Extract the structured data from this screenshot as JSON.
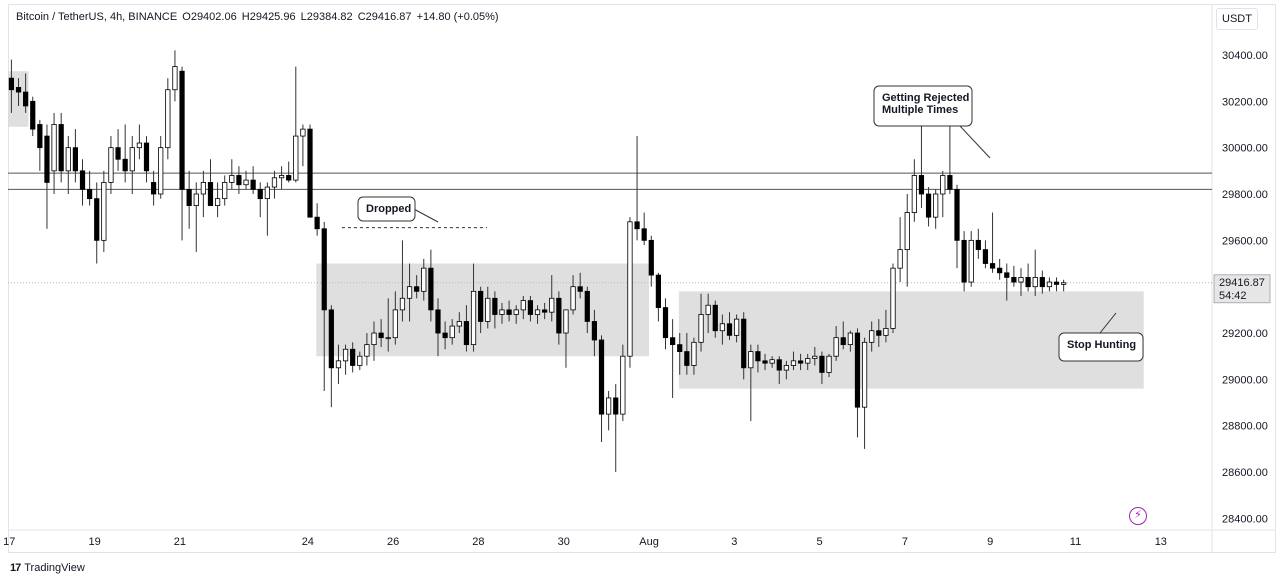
{
  "legend": {
    "symbol": "Bitcoin / TetherUS, 4h, BINANCE",
    "open": "O29402.06",
    "high": "H29425.96",
    "low": "L29384.82",
    "close": "C29416.87",
    "change": "+14.80 (+0.05%)"
  },
  "currency_button": "USDT",
  "price_tag": {
    "price": "29416.87",
    "countdown": "54:42"
  },
  "footer": {
    "brand": "TradingView",
    "logo_icon": "tradingview-logo-icon"
  },
  "annotations": [
    {
      "text": "Dropped"
    },
    {
      "text_lines": [
        "Getting Rejected",
        "Multiple Times"
      ]
    },
    {
      "text": "Stop Hunting"
    }
  ],
  "colors": {
    "up": "#ffffff",
    "down": "#000000",
    "wick": "#333333",
    "zone": "#d9d9d9",
    "accent": "#9c27b0"
  },
  "chart_data": {
    "type": "candlestick",
    "title": "",
    "y_ticks": [
      28400,
      28600,
      28800,
      29000,
      29200,
      29400,
      29600,
      29800,
      30000,
      30200,
      30400
    ],
    "y_tick_labels": [
      "28400.00",
      "28600.00",
      "28800.00",
      "29000.00",
      "29200.00",
      "29400.00",
      "29600.00",
      "29800.00",
      "30000.00",
      "30200.00",
      "30400.00"
    ],
    "ylim": [
      28350,
      30620
    ],
    "x_ticks": [
      {
        "label": "17",
        "day": 17
      },
      {
        "label": "19",
        "day": 19
      },
      {
        "label": "21",
        "day": 21
      },
      {
        "label": "24",
        "day": 24
      },
      {
        "label": "26",
        "day": 26
      },
      {
        "label": "28",
        "day": 28
      },
      {
        "label": "30",
        "day": 30
      },
      {
        "label": "Aug",
        "day": 32
      },
      {
        "label": "3",
        "day": 34
      },
      {
        "label": "5",
        "day": 36
      },
      {
        "label": "7",
        "day": 38
      },
      {
        "label": "9",
        "day": 40
      },
      {
        "label": "11",
        "day": 42
      },
      {
        "label": "13",
        "day": 44
      }
    ],
    "xlim_days": [
      16.97,
      45.2
    ],
    "horizontal_lines": [
      29890,
      29820
    ],
    "current_price": 29416.87,
    "zones": [
      {
        "day_start": 24.2,
        "day_end": 32.0,
        "price_low": 29100,
        "price_high": 29500
      },
      {
        "day_start": 32.7,
        "day_end": 43.6,
        "price_low": 28960,
        "price_high": 29380
      },
      {
        "day_start": 16.97,
        "day_end": 17.45,
        "price_low": 30090,
        "price_high": 30330
      }
    ],
    "dropped_line": {
      "day_start": 24.8,
      "day_end": 28.2,
      "price": 29655
    },
    "callouts": [
      {
        "label": "Dropped",
        "day": 26.9,
        "price": 29780,
        "tip_day": 27.9,
        "tip_price": 29680
      },
      {
        "label": "Getting Rejected Multiple Times",
        "day": 38.9,
        "price": 30160,
        "tip_day": 39.9,
        "tip_price": 29950
      },
      {
        "label": "Stop Hunting",
        "day": 43.0,
        "price": 29165,
        "tip_day": 42.5,
        "tip_price": 29320
      }
    ],
    "candles_start_day": 17.05,
    "candle_step_days": 0.1667,
    "candles": [
      [
        30300,
        30380,
        30150,
        30250
      ],
      [
        30260,
        30300,
        30180,
        30240
      ],
      [
        30240,
        30320,
        30150,
        30180
      ],
      [
        30200,
        30220,
        30050,
        30080
      ],
      [
        30100,
        30120,
        29900,
        30000
      ],
      [
        30050,
        30100,
        29650,
        29850
      ],
      [
        29900,
        30150,
        29800,
        30100
      ],
      [
        30100,
        30150,
        29850,
        29900
      ],
      [
        29900,
        30050,
        29800,
        30000
      ],
      [
        30000,
        30080,
        29850,
        29900
      ],
      [
        29900,
        29950,
        29750,
        29820
      ],
      [
        29820,
        29900,
        29750,
        29780
      ],
      [
        29780,
        29850,
        29500,
        29600
      ],
      [
        29600,
        29900,
        29550,
        29850
      ],
      [
        29850,
        30050,
        29800,
        30000
      ],
      [
        30000,
        30080,
        29900,
        29950
      ],
      [
        29950,
        30100,
        29850,
        29900
      ],
      [
        29900,
        30050,
        29800,
        30000
      ],
      [
        30000,
        30100,
        29950,
        30020
      ],
      [
        30020,
        30050,
        29850,
        29900
      ],
      [
        29850,
        29900,
        29750,
        29800
      ],
      [
        29800,
        30050,
        29780,
        30000
      ],
      [
        30000,
        30300,
        29950,
        30250
      ],
      [
        30250,
        30420,
        30200,
        30350
      ],
      [
        30330,
        30350,
        29600,
        29820
      ],
      [
        29820,
        29900,
        29650,
        29750
      ],
      [
        29750,
        29850,
        29550,
        29800
      ],
      [
        29800,
        29900,
        29700,
        29850
      ],
      [
        29850,
        29950,
        29750,
        29750
      ],
      [
        29750,
        29850,
        29700,
        29780
      ],
      [
        29780,
        29880,
        29750,
        29850
      ],
      [
        29850,
        29950,
        29820,
        29880
      ],
      [
        29880,
        29920,
        29800,
        29840
      ],
      [
        29840,
        29900,
        29820,
        29860
      ],
      [
        29860,
        29920,
        29800,
        29820
      ],
      [
        29820,
        29850,
        29700,
        29780
      ],
      [
        29780,
        29850,
        29620,
        29830
      ],
      [
        29830,
        29900,
        29780,
        29870
      ],
      [
        29870,
        29920,
        29820,
        29880
      ],
      [
        29880,
        29940,
        29850,
        29860
      ],
      [
        29860,
        30350,
        29850,
        30050
      ],
      [
        30050,
        30100,
        29920,
        30080
      ],
      [
        30080,
        30100,
        29700,
        29700
      ],
      [
        29700,
        29760,
        29620,
        29650
      ],
      [
        29650,
        29680,
        28950,
        29300
      ],
      [
        29300,
        29320,
        28880,
        29050
      ],
      [
        29050,
        29150,
        28980,
        29080
      ],
      [
        29080,
        29150,
        29020,
        29130
      ],
      [
        29130,
        29160,
        29030,
        29060
      ],
      [
        29060,
        29120,
        29040,
        29100
      ],
      [
        29100,
        29200,
        29060,
        29150
      ],
      [
        29150,
        29250,
        29080,
        29200
      ],
      [
        29200,
        29260,
        29140,
        29180
      ],
      [
        29180,
        29350,
        29120,
        29180
      ],
      [
        29180,
        29380,
        29150,
        29300
      ],
      [
        29300,
        29600,
        29250,
        29350
      ],
      [
        29350,
        29500,
        29250,
        29400
      ],
      [
        29400,
        29450,
        29350,
        29380
      ],
      [
        29380,
        29520,
        29340,
        29480
      ],
      [
        29480,
        29560,
        29250,
        29300
      ],
      [
        29300,
        29350,
        29100,
        29200
      ],
      [
        29200,
        29250,
        29130,
        29180
      ],
      [
        29180,
        29260,
        29150,
        29230
      ],
      [
        29230,
        29290,
        29200,
        29250
      ],
      [
        29250,
        29320,
        29120,
        29150
      ],
      [
        29150,
        29500,
        29120,
        29380
      ],
      [
        29380,
        29400,
        29200,
        29250
      ],
      [
        29250,
        29400,
        29220,
        29350
      ],
      [
        29350,
        29380,
        29220,
        29280
      ],
      [
        29280,
        29330,
        29240,
        29300
      ],
      [
        29300,
        29340,
        29250,
        29280
      ],
      [
        29280,
        29320,
        29240,
        29300
      ],
      [
        29300,
        29360,
        29260,
        29340
      ],
      [
        29340,
        29360,
        29250,
        29280
      ],
      [
        29280,
        29320,
        29240,
        29300
      ],
      [
        29300,
        29330,
        29260,
        29290
      ],
      [
        29290,
        29450,
        29250,
        29350
      ],
      [
        29350,
        29380,
        29150,
        29200
      ],
      [
        29200,
        29300,
        29050,
        29300
      ],
      [
        29300,
        29450,
        29280,
        29400
      ],
      [
        29400,
        29460,
        29350,
        29380
      ],
      [
        29380,
        29400,
        29200,
        29250
      ],
      [
        29250,
        29300,
        29100,
        29170
      ],
      [
        29170,
        29190,
        28730,
        28850
      ],
      [
        28850,
        28950,
        28780,
        28920
      ],
      [
        28920,
        28980,
        28600,
        28850
      ],
      [
        28850,
        29150,
        28820,
        29100
      ],
      [
        29100,
        29700,
        29050,
        29680
      ],
      [
        29680,
        30050,
        29600,
        29650
      ],
      [
        29650,
        29720,
        29580,
        29600
      ],
      [
        29600,
        29620,
        29400,
        29450
      ],
      [
        29450,
        29460,
        29250,
        29310
      ],
      [
        29310,
        29350,
        29130,
        29180
      ],
      [
        29180,
        29260,
        28920,
        29150
      ],
      [
        29150,
        29200,
        29020,
        29120
      ],
      [
        29120,
        29200,
        29020,
        29060
      ],
      [
        29060,
        29180,
        29020,
        29160
      ],
      [
        29160,
        29370,
        29120,
        29280
      ],
      [
        29280,
        29370,
        29200,
        29320
      ],
      [
        29320,
        29340,
        29180,
        29210
      ],
      [
        29210,
        29280,
        29150,
        29240
      ],
      [
        29240,
        29290,
        29170,
        29190
      ],
      [
        29190,
        29280,
        29160,
        29260
      ],
      [
        29260,
        29290,
        29000,
        29050
      ],
      [
        29050,
        29150,
        28820,
        29120
      ],
      [
        29120,
        29150,
        29030,
        29080
      ],
      [
        29080,
        29110,
        29040,
        29070
      ],
      [
        29070,
        29100,
        29050,
        29085
      ],
      [
        29085,
        29100,
        28980,
        29040
      ],
      [
        29040,
        29080,
        29000,
        29060
      ],
      [
        29060,
        29120,
        29040,
        29080
      ],
      [
        29080,
        29110,
        29040,
        29070
      ],
      [
        29070,
        29110,
        29040,
        29090
      ],
      [
        29090,
        29140,
        29060,
        29100
      ],
      [
        29100,
        29120,
        28980,
        29030
      ],
      [
        29030,
        29110,
        29010,
        29100
      ],
      [
        29100,
        29230,
        29080,
        29180
      ],
      [
        29180,
        29250,
        29130,
        29150
      ],
      [
        29150,
        29210,
        29120,
        29200
      ],
      [
        29200,
        29220,
        28750,
        28880
      ],
      [
        28880,
        29180,
        28700,
        29160
      ],
      [
        29160,
        29250,
        29120,
        29210
      ],
      [
        29210,
        29260,
        29140,
        29190
      ],
      [
        29190,
        29300,
        29160,
        29220
      ],
      [
        29220,
        29500,
        29200,
        29480
      ],
      [
        29480,
        29700,
        29420,
        29560
      ],
      [
        29560,
        29800,
        29400,
        29720
      ],
      [
        29720,
        29950,
        29680,
        29880
      ],
      [
        29880,
        30220,
        29740,
        29800
      ],
      [
        29800,
        29830,
        29660,
        29700
      ],
      [
        29700,
        29820,
        29650,
        29800
      ],
      [
        29800,
        29900,
        29700,
        29880
      ],
      [
        29880,
        30150,
        29800,
        29820
      ],
      [
        29820,
        29840,
        29480,
        29600
      ],
      [
        29600,
        29640,
        29380,
        29420
      ],
      [
        29420,
        29640,
        29400,
        29600
      ],
      [
        29600,
        29650,
        29520,
        29560
      ],
      [
        29560,
        29600,
        29480,
        29500
      ],
      [
        29500,
        29720,
        29460,
        29480
      ],
      [
        29480,
        29520,
        29430,
        29460
      ],
      [
        29460,
        29500,
        29340,
        29440
      ],
      [
        29440,
        29490,
        29400,
        29420
      ],
      [
        29420,
        29480,
        29360,
        29440
      ],
      [
        29440,
        29500,
        29380,
        29400
      ],
      [
        29400,
        29560,
        29360,
        29440
      ],
      [
        29440,
        29470,
        29370,
        29400
      ],
      [
        29400,
        29440,
        29380,
        29420
      ],
      [
        29420,
        29440,
        29380,
        29410
      ],
      [
        29410,
        29430,
        29380,
        29417
      ]
    ]
  }
}
